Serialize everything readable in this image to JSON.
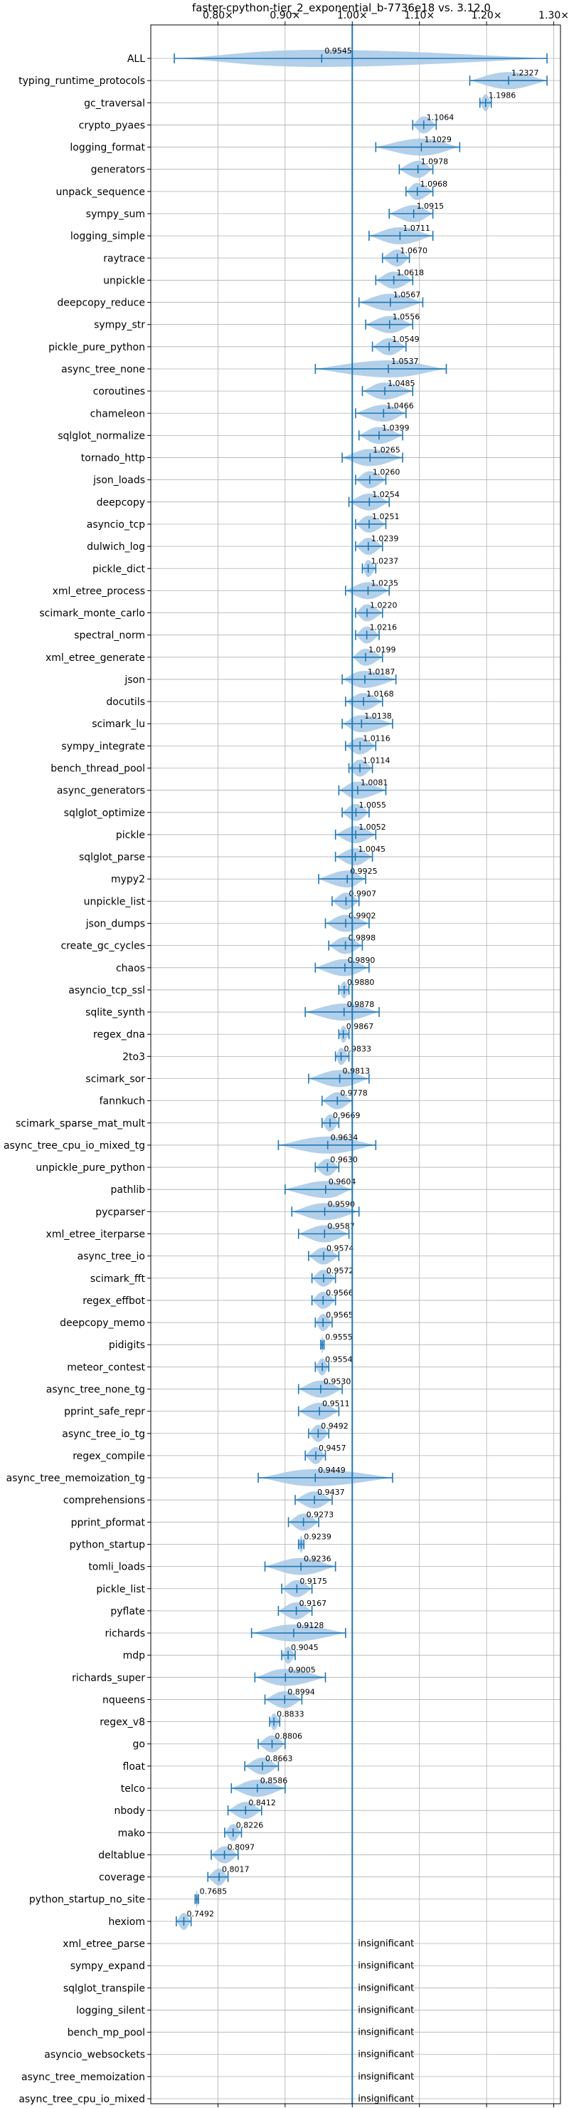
{
  "chart_data": {
    "type": "violin",
    "title": "faster-cpython-tier_2_exponential_b-7736e18 vs. 3.12.0",
    "xlim": [
      0.7,
      1.31
    ],
    "x_ticks": [
      0.8,
      0.9,
      1.0,
      1.1,
      1.2,
      1.3
    ],
    "x_tick_labels": [
      "0.80×",
      "0.90×",
      "1.00×",
      "1.10×",
      "1.20×",
      "1.30×"
    ],
    "reference_line": 1.0,
    "grid": true,
    "colors": {
      "violin": "#a6c8e6",
      "line": "#1f77b4",
      "grid": "#b0b0b0",
      "axis": "#000000"
    },
    "insignificant_label": "insignificant",
    "benchmarks": [
      {
        "name": "ALL",
        "value": 0.9545,
        "min": 0.735,
        "max": 1.29,
        "label": "0.9545"
      },
      {
        "name": "typing_runtime_protocols",
        "value": 1.2327,
        "min": 1.175,
        "max": 1.29,
        "label": "1.2327"
      },
      {
        "name": "gc_traversal",
        "value": 1.1986,
        "min": 1.19,
        "max": 1.207,
        "label": "1.1986"
      },
      {
        "name": "crypto_pyaes",
        "value": 1.1064,
        "min": 1.09,
        "max": 1.125,
        "label": "1.1064"
      },
      {
        "name": "logging_format",
        "value": 1.1029,
        "min": 1.035,
        "max": 1.16,
        "label": "1.1029"
      },
      {
        "name": "generators",
        "value": 1.0978,
        "min": 1.07,
        "max": 1.12,
        "label": "1.0978"
      },
      {
        "name": "unpack_sequence",
        "value": 1.0968,
        "min": 1.08,
        "max": 1.12,
        "label": "1.0968"
      },
      {
        "name": "sympy_sum",
        "value": 1.0915,
        "min": 1.055,
        "max": 1.12,
        "label": "1.0915"
      },
      {
        "name": "logging_simple",
        "value": 1.0711,
        "min": 1.025,
        "max": 1.12,
        "label": "1.0711"
      },
      {
        "name": "raytrace",
        "value": 1.067,
        "min": 1.045,
        "max": 1.085,
        "label": "1.0670"
      },
      {
        "name": "unpickle",
        "value": 1.0618,
        "min": 1.035,
        "max": 1.09,
        "label": "1.0618"
      },
      {
        "name": "deepcopy_reduce",
        "value": 1.0567,
        "min": 1.01,
        "max": 1.105,
        "label": "1.0567"
      },
      {
        "name": "sympy_str",
        "value": 1.0556,
        "min": 1.02,
        "max": 1.09,
        "label": "1.0556"
      },
      {
        "name": "pickle_pure_python",
        "value": 1.0549,
        "min": 1.03,
        "max": 1.08,
        "label": "1.0549"
      },
      {
        "name": "async_tree_none",
        "value": 1.0537,
        "min": 0.945,
        "max": 1.14,
        "label": "1.0537"
      },
      {
        "name": "coroutines",
        "value": 1.0485,
        "min": 1.015,
        "max": 1.09,
        "label": "1.0485"
      },
      {
        "name": "chameleon",
        "value": 1.0466,
        "min": 1.005,
        "max": 1.08,
        "label": "1.0466"
      },
      {
        "name": "sqlglot_normalize",
        "value": 1.0399,
        "min": 1.01,
        "max": 1.075,
        "label": "1.0399"
      },
      {
        "name": "tornado_http",
        "value": 1.0265,
        "min": 0.985,
        "max": 1.075,
        "label": "1.0265"
      },
      {
        "name": "json_loads",
        "value": 1.026,
        "min": 1.005,
        "max": 1.05,
        "label": "1.0260"
      },
      {
        "name": "deepcopy",
        "value": 1.0254,
        "min": 0.995,
        "max": 1.055,
        "label": "1.0254"
      },
      {
        "name": "asyncio_tcp",
        "value": 1.0251,
        "min": 1.005,
        "max": 1.05,
        "label": "1.0251"
      },
      {
        "name": "dulwich_log",
        "value": 1.0239,
        "min": 1.005,
        "max": 1.045,
        "label": "1.0239"
      },
      {
        "name": "pickle_dict",
        "value": 1.0237,
        "min": 1.015,
        "max": 1.035,
        "label": "1.0237"
      },
      {
        "name": "xml_etree_process",
        "value": 1.0235,
        "min": 0.99,
        "max": 1.055,
        "label": "1.0235"
      },
      {
        "name": "scimark_monte_carlo",
        "value": 1.022,
        "min": 1.005,
        "max": 1.045,
        "label": "1.0220"
      },
      {
        "name": "spectral_norm",
        "value": 1.0216,
        "min": 1.005,
        "max": 1.04,
        "label": "1.0216"
      },
      {
        "name": "xml_etree_generate",
        "value": 1.0199,
        "min": 1.0,
        "max": 1.045,
        "label": "1.0199"
      },
      {
        "name": "json",
        "value": 1.0187,
        "min": 0.985,
        "max": 1.065,
        "label": "1.0187"
      },
      {
        "name": "docutils",
        "value": 1.0168,
        "min": 0.99,
        "max": 1.045,
        "label": "1.0168"
      },
      {
        "name": "scimark_lu",
        "value": 1.0138,
        "min": 0.985,
        "max": 1.06,
        "label": "1.0138"
      },
      {
        "name": "sympy_integrate",
        "value": 1.0116,
        "min": 0.99,
        "max": 1.035,
        "label": "1.0116"
      },
      {
        "name": "bench_thread_pool",
        "value": 1.0114,
        "min": 0.995,
        "max": 1.03,
        "label": "1.0114"
      },
      {
        "name": "async_generators",
        "value": 1.0081,
        "min": 0.98,
        "max": 1.05,
        "label": "1.0081"
      },
      {
        "name": "sqlglot_optimize",
        "value": 1.0055,
        "min": 0.985,
        "max": 1.025,
        "label": "1.0055"
      },
      {
        "name": "pickle",
        "value": 1.0052,
        "min": 0.975,
        "max": 1.035,
        "label": "1.0052"
      },
      {
        "name": "sqlglot_parse",
        "value": 1.0045,
        "min": 0.975,
        "max": 1.03,
        "label": "1.0045"
      },
      {
        "name": "mypy2",
        "value": 0.9925,
        "min": 0.95,
        "max": 1.02,
        "label": "0.9925"
      },
      {
        "name": "unpickle_list",
        "value": 0.9907,
        "min": 0.97,
        "max": 1.01,
        "label": "0.9907"
      },
      {
        "name": "json_dumps",
        "value": 0.9902,
        "min": 0.96,
        "max": 1.025,
        "label": "0.9902"
      },
      {
        "name": "create_gc_cycles",
        "value": 0.9898,
        "min": 0.965,
        "max": 1.015,
        "label": "0.9898"
      },
      {
        "name": "chaos",
        "value": 0.989,
        "min": 0.945,
        "max": 1.025,
        "label": "0.9890"
      },
      {
        "name": "asyncio_tcp_ssl",
        "value": 0.988,
        "min": 0.98,
        "max": 0.995,
        "label": "0.9880"
      },
      {
        "name": "sqlite_synth",
        "value": 0.9878,
        "min": 0.93,
        "max": 1.04,
        "label": "0.9878"
      },
      {
        "name": "regex_dna",
        "value": 0.9867,
        "min": 0.98,
        "max": 0.995,
        "label": "0.9867"
      },
      {
        "name": "2to3",
        "value": 0.9833,
        "min": 0.975,
        "max": 0.995,
        "label": "0.9833"
      },
      {
        "name": "scimark_sor",
        "value": 0.9813,
        "min": 0.935,
        "max": 1.025,
        "label": "0.9813"
      },
      {
        "name": "fannkuch",
        "value": 0.9778,
        "min": 0.955,
        "max": 1.0,
        "label": "0.9778"
      },
      {
        "name": "scimark_sparse_mat_mult",
        "value": 0.9669,
        "min": 0.955,
        "max": 0.98,
        "label": "0.9669"
      },
      {
        "name": "async_tree_cpu_io_mixed_tg",
        "value": 0.9634,
        "min": 0.89,
        "max": 1.035,
        "label": "0.9634"
      },
      {
        "name": "unpickle_pure_python",
        "value": 0.963,
        "min": 0.945,
        "max": 0.98,
        "label": "0.9630"
      },
      {
        "name": "pathlib",
        "value": 0.9604,
        "min": 0.9,
        "max": 1.0,
        "label": "0.9604"
      },
      {
        "name": "pycparser",
        "value": 0.959,
        "min": 0.91,
        "max": 1.01,
        "label": "0.9590"
      },
      {
        "name": "xml_etree_iterparse",
        "value": 0.9587,
        "min": 0.92,
        "max": 0.995,
        "label": "0.9587"
      },
      {
        "name": "async_tree_io",
        "value": 0.9574,
        "min": 0.935,
        "max": 0.98,
        "label": "0.9574"
      },
      {
        "name": "scimark_fft",
        "value": 0.9572,
        "min": 0.94,
        "max": 0.975,
        "label": "0.9572"
      },
      {
        "name": "regex_effbot",
        "value": 0.9566,
        "min": 0.94,
        "max": 0.975,
        "label": "0.9566"
      },
      {
        "name": "deepcopy_memo",
        "value": 0.9565,
        "min": 0.945,
        "max": 0.97,
        "label": "0.9565"
      },
      {
        "name": "pidigits",
        "value": 0.9555,
        "min": 0.953,
        "max": 0.958,
        "label": "0.9555"
      },
      {
        "name": "meteor_contest",
        "value": 0.9554,
        "min": 0.945,
        "max": 0.965,
        "label": "0.9554"
      },
      {
        "name": "async_tree_none_tg",
        "value": 0.953,
        "min": 0.92,
        "max": 0.985,
        "label": "0.9530"
      },
      {
        "name": "pprint_safe_repr",
        "value": 0.9511,
        "min": 0.92,
        "max": 0.98,
        "label": "0.9511"
      },
      {
        "name": "async_tree_io_tg",
        "value": 0.9492,
        "min": 0.935,
        "max": 0.965,
        "label": "0.9492"
      },
      {
        "name": "regex_compile",
        "value": 0.9457,
        "min": 0.93,
        "max": 0.96,
        "label": "0.9457"
      },
      {
        "name": "async_tree_memoization_tg",
        "value": 0.9449,
        "min": 0.86,
        "max": 1.06,
        "label": "0.9449"
      },
      {
        "name": "comprehensions",
        "value": 0.9437,
        "min": 0.915,
        "max": 0.97,
        "label": "0.9437"
      },
      {
        "name": "pprint_pformat",
        "value": 0.9273,
        "min": 0.905,
        "max": 0.95,
        "label": "0.9273"
      },
      {
        "name": "python_startup",
        "value": 0.9239,
        "min": 0.92,
        "max": 0.928,
        "label": "0.9239"
      },
      {
        "name": "tomli_loads",
        "value": 0.9236,
        "min": 0.87,
        "max": 0.975,
        "label": "0.9236"
      },
      {
        "name": "pickle_list",
        "value": 0.9175,
        "min": 0.895,
        "max": 0.94,
        "label": "0.9175"
      },
      {
        "name": "pyflate",
        "value": 0.9167,
        "min": 0.89,
        "max": 0.94,
        "label": "0.9167"
      },
      {
        "name": "richards",
        "value": 0.9128,
        "min": 0.85,
        "max": 0.99,
        "label": "0.9128"
      },
      {
        "name": "mdp",
        "value": 0.9045,
        "min": 0.895,
        "max": 0.915,
        "label": "0.9045"
      },
      {
        "name": "richards_super",
        "value": 0.9005,
        "min": 0.855,
        "max": 0.96,
        "label": "0.9005"
      },
      {
        "name": "nqueens",
        "value": 0.8994,
        "min": 0.87,
        "max": 0.925,
        "label": "0.8994"
      },
      {
        "name": "regex_v8",
        "value": 0.8833,
        "min": 0.877,
        "max": 0.892,
        "label": "0.8833"
      },
      {
        "name": "go",
        "value": 0.8806,
        "min": 0.86,
        "max": 0.9,
        "label": "0.8806"
      },
      {
        "name": "float",
        "value": 0.8663,
        "min": 0.84,
        "max": 0.89,
        "label": "0.8663"
      },
      {
        "name": "telco",
        "value": 0.8586,
        "min": 0.82,
        "max": 0.9,
        "label": "0.8586"
      },
      {
        "name": "nbody",
        "value": 0.8412,
        "min": 0.815,
        "max": 0.865,
        "label": "0.8412"
      },
      {
        "name": "mako",
        "value": 0.8226,
        "min": 0.81,
        "max": 0.835,
        "label": "0.8226"
      },
      {
        "name": "deltablue",
        "value": 0.8097,
        "min": 0.79,
        "max": 0.83,
        "label": "0.8097"
      },
      {
        "name": "coverage",
        "value": 0.8017,
        "min": 0.785,
        "max": 0.815,
        "label": "0.8017"
      },
      {
        "name": "python_startup_no_site",
        "value": 0.7685,
        "min": 0.766,
        "max": 0.771,
        "label": "0.7685"
      },
      {
        "name": "hexiom",
        "value": 0.7492,
        "min": 0.738,
        "max": 0.76,
        "label": "0.7492"
      },
      {
        "name": "xml_etree_parse",
        "insignificant": true
      },
      {
        "name": "sympy_expand",
        "insignificant": true
      },
      {
        "name": "sqlglot_transpile",
        "insignificant": true
      },
      {
        "name": "logging_silent",
        "insignificant": true
      },
      {
        "name": "bench_mp_pool",
        "insignificant": true
      },
      {
        "name": "asyncio_websockets",
        "insignificant": true
      },
      {
        "name": "async_tree_memoization",
        "insignificant": true
      },
      {
        "name": "async_tree_cpu_io_mixed",
        "insignificant": true
      }
    ]
  }
}
